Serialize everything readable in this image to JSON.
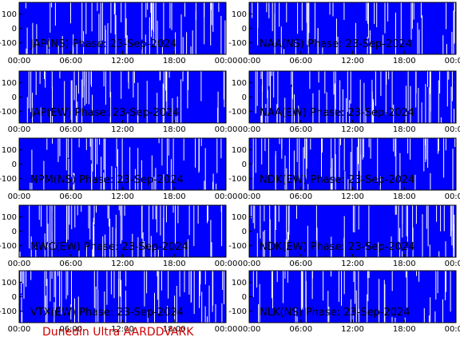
{
  "footer": "Dunedin Ultra AARDDVARK",
  "colors": {
    "plot": "#0000ff",
    "spike": "#ffffff",
    "frame": "#000000",
    "footer": "#cc0000"
  },
  "chart_data": [
    {
      "type": "line",
      "title": "JAP(NS) Phase: 23-Sep-2024",
      "xticks": [
        "00:00",
        "06:00",
        "12:00",
        "18:00",
        "00:00"
      ],
      "yticks": [
        "100",
        "0",
        "-100"
      ],
      "ylim": [
        -180,
        180
      ],
      "xlabel": "",
      "ylabel": ""
    },
    {
      "type": "line",
      "title": "NAA(NS) Phase: 23-Sep-2024",
      "xticks": [
        "00:00",
        "06:00",
        "12:00",
        "18:00",
        "00:00"
      ],
      "yticks": [
        "100",
        "0",
        "-100"
      ],
      "ylim": [
        -180,
        180
      ],
      "xlabel": "",
      "ylabel": ""
    },
    {
      "type": "line",
      "title": "JAP(EW) Phase: 23-Sep-2024",
      "xticks": [
        "00:00",
        "06:00",
        "12:00",
        "18:00",
        "00:00"
      ],
      "yticks": [
        "100",
        "0",
        "-100"
      ],
      "ylim": [
        -180,
        180
      ],
      "xlabel": "",
      "ylabel": ""
    },
    {
      "type": "line",
      "title": "NAA(EW) Phase: 23-Sep-2024",
      "xticks": [
        "00:00",
        "06:00",
        "12:00",
        "18:00",
        "00:00"
      ],
      "yticks": [
        "100",
        "0",
        "-100"
      ],
      "ylim": [
        -180,
        180
      ],
      "xlabel": "",
      "ylabel": ""
    },
    {
      "type": "line",
      "title": "NPM(NS) Phase: 23-Sep-2024",
      "xticks": [
        "00:00",
        "06:00",
        "12:00",
        "18:00",
        "00:00"
      ],
      "yticks": [
        "100",
        "0",
        "-100"
      ],
      "ylim": [
        -180,
        180
      ],
      "xlabel": "",
      "ylabel": ""
    },
    {
      "type": "line",
      "title": "NDK(EW) Phase: 23-Sep-2024",
      "xticks": [
        "00:00",
        "06:00",
        "12:00",
        "18:00",
        "00:00"
      ],
      "yticks": [
        "100",
        "0",
        "-100"
      ],
      "ylim": [
        -180,
        180
      ],
      "xlabel": "",
      "ylabel": ""
    },
    {
      "type": "line",
      "title": "NWC(EW) Phase: 23-Sep-2024",
      "xticks": [
        "00:00",
        "06:00",
        "12:00",
        "18:00",
        "00:00"
      ],
      "yticks": [
        "100",
        "0",
        "-100"
      ],
      "ylim": [
        -180,
        180
      ],
      "xlabel": "",
      "ylabel": ""
    },
    {
      "type": "line",
      "title": "NDK(EW) Phase: 23-Sep-2024",
      "xticks": [
        "00:00",
        "06:00",
        "12:00",
        "18:00",
        "00:00"
      ],
      "yticks": [
        "100",
        "0",
        "-100"
      ],
      "ylim": [
        -180,
        180
      ],
      "xlabel": "",
      "ylabel": ""
    },
    {
      "type": "line",
      "title": "VTX(EW) Phase: 23-Sep-2024",
      "xticks": [
        "00:00",
        "06:00",
        "12:00",
        "18:00",
        "00:00"
      ],
      "yticks": [
        "100",
        "0",
        "-100"
      ],
      "ylim": [
        -180,
        180
      ],
      "xlabel": "",
      "ylabel": ""
    },
    {
      "type": "line",
      "title": "NLK(NS) Phase: 23-Sep-2024",
      "xticks": [
        "00:00",
        "06:00",
        "12:00",
        "18:00",
        "00:00"
      ],
      "yticks": [
        "100",
        "0",
        "-100"
      ],
      "ylim": [
        -180,
        180
      ],
      "xlabel": "",
      "ylabel": ""
    }
  ]
}
